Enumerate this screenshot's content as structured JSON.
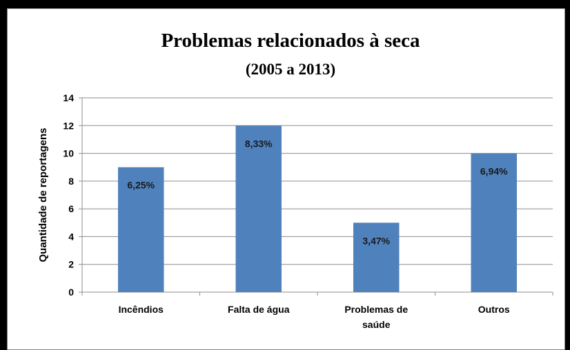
{
  "chart_data": {
    "type": "bar",
    "title": "Problemas relacionados à seca",
    "subtitle": "(2005 a 2013)",
    "ylabel": "Quantidade de reportagens",
    "xlabel": "",
    "categories": [
      "Incêndios",
      "Falta de água",
      "Problemas de saúde",
      "Outros"
    ],
    "category_lines": [
      [
        "Incêndios"
      ],
      [
        "Falta de água"
      ],
      [
        "Problemas de",
        "saúde"
      ],
      [
        "Outros"
      ]
    ],
    "values": [
      9,
      12,
      5,
      10
    ],
    "data_labels": [
      "6,25%",
      "8,33%",
      "3,47%",
      "6,94%"
    ],
    "ylim": [
      0,
      14
    ],
    "yticks": [
      0,
      2,
      4,
      6,
      8,
      10,
      12,
      14
    ],
    "grid": true,
    "legend": "none",
    "bar_color": "#4f81bd"
  }
}
